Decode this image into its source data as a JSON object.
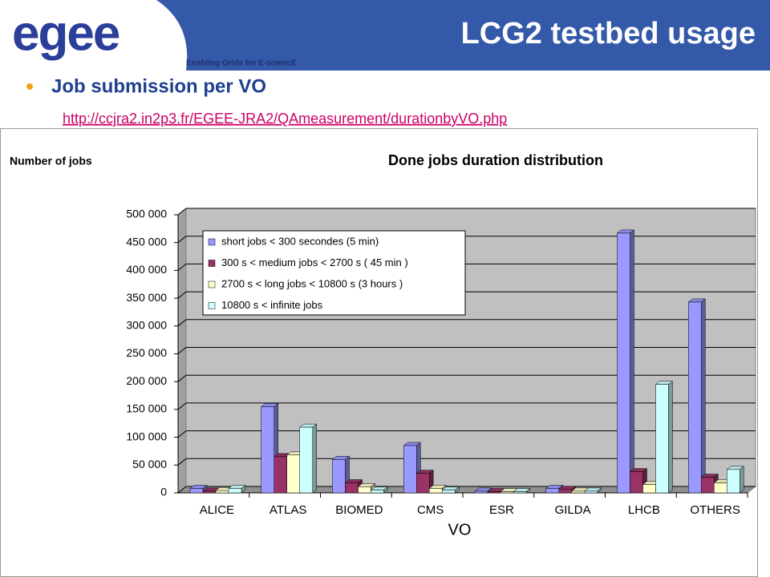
{
  "header": {
    "logo": "egee",
    "tagline": "Enabling Grids for E-sciencE",
    "title": "LCG2 testbed usage"
  },
  "bullet": "Job submission per VO",
  "link": "http://ccjra2.in2p3.fr/EGEE-JRA2/QAmeasurement/durationbyVO.php",
  "chart_data": {
    "type": "bar",
    "title": "Done jobs duration distribution",
    "y_label": "Number of jobs",
    "x_label": "VO",
    "categories": [
      "ALICE",
      "ATLAS",
      "BIOMED",
      "CMS",
      "ESR",
      "GILDA",
      "LHCB",
      "OTHERS"
    ],
    "series": [
      {
        "name": "short jobs < 300 secondes (5 min)",
        "color": "#9999ff",
        "values": [
          8000,
          155000,
          60000,
          85000,
          3000,
          8000,
          467000,
          343000
        ]
      },
      {
        "name": "300 s < medium jobs < 2700 s ( 45 min )",
        "color": "#993366",
        "values": [
          3000,
          65000,
          18000,
          35000,
          2000,
          6000,
          38000,
          28000
        ]
      },
      {
        "name": "2700 s < long jobs < 10800 s (3 hours )",
        "color": "#ffffcc",
        "values": [
          4000,
          68000,
          11000,
          8000,
          2000,
          3000,
          15000,
          18000
        ]
      },
      {
        "name": "10800 s < infinite jobs",
        "color": "#ccffff",
        "values": [
          8000,
          118000,
          5000,
          5000,
          2000,
          3000,
          195000,
          42000
        ]
      }
    ],
    "ylim": [
      0,
      500000
    ],
    "yticks": [
      0,
      {
        "value": 50000,
        "label": "50 000"
      },
      {
        "value": 100000,
        "label": "100 000"
      },
      {
        "value": 150000,
        "label": "150 000"
      },
      {
        "value": 200000,
        "label": "200 000"
      },
      {
        "value": 250000,
        "label": "250 000"
      },
      {
        "value": 300000,
        "label": "300 000"
      },
      {
        "value": 350000,
        "label": "350 000"
      },
      {
        "value": 400000,
        "label": "400 000"
      },
      {
        "value": 450000,
        "label": "450 000"
      },
      {
        "value": 500000,
        "label": "500 000"
      }
    ],
    "grid": true,
    "legend": "upper left"
  }
}
